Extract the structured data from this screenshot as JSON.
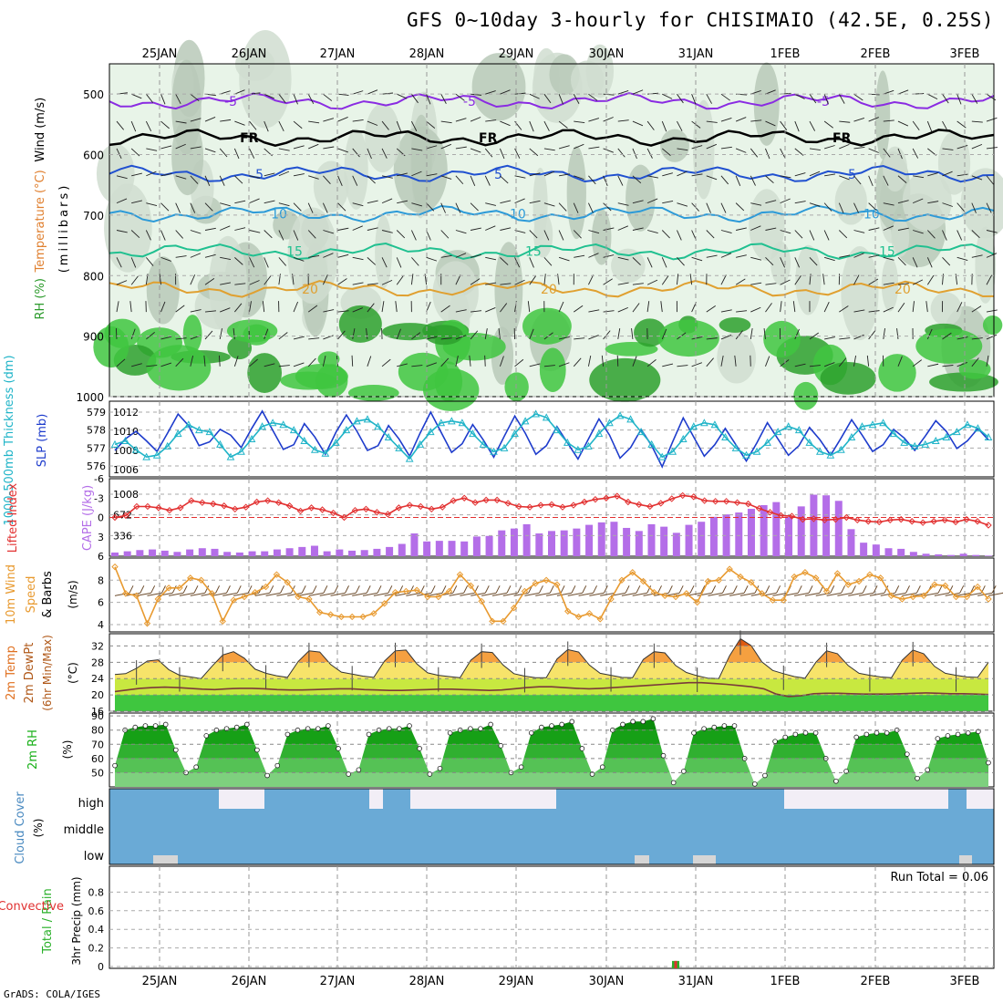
{
  "title": "GFS 0~10day 3-hourly for CHISIMAIO (42.5E, 0.25S)",
  "footer": "GrADS: COLA/IGES",
  "run_total_text": "Run Total = 0.06",
  "colors": {
    "rh_green": "#3fc63f",
    "cape": "#b46ee8",
    "lifted_index": "#e23030",
    "slp": "#1e3ccc",
    "thickness": "#20b4c8",
    "wind_speed": "#e89a30",
    "cloud": "#6aaad6",
    "rh2m": "#19b019",
    "temp_top": "#e05a10"
  },
  "chart_data": [
    {
      "type": "heatmap",
      "name": "vertical profile",
      "ylabel_segments": [
        {
          "text": "RH (%)",
          "color": "#2a9a2a"
        },
        {
          "text": "Temperature (°C)",
          "color": "#e08030"
        },
        {
          "text": "Wind (m/s)",
          "color": "#000000"
        }
      ],
      "ylabel2": "(millibars)",
      "x_top_labels": [
        "25JAN",
        "26JAN",
        "27JAN",
        "28JAN",
        "29JAN",
        "30JAN",
        "31JAN",
        "1FEB",
        "2FEB",
        "3FEB"
      ],
      "y_ticks": [
        500,
        600,
        700,
        800,
        900,
        1000
      ],
      "ylim": [
        1000,
        450
      ],
      "temperature_contours": [
        {
          "label": "-5",
          "pressure": 512,
          "color": "#8a2be2"
        },
        {
          "label": "FR",
          "pressure": 572,
          "color": "#000000"
        },
        {
          "label": "5",
          "pressure": 632,
          "color": "#2050d0"
        },
        {
          "label": "10",
          "pressure": 698,
          "color": "#2c9ad8"
        },
        {
          "label": "15",
          "pressure": 760,
          "color": "#20c090"
        },
        {
          "label": "20",
          "pressure": 822,
          "color": "#e0a030"
        }
      ]
    },
    {
      "type": "line",
      "name": "thickness and SLP",
      "ylabel_left": "1000-500mb Thickness (dm)",
      "ylabel_right": "SLP (mb)",
      "left_ticks": [
        576,
        577,
        578,
        579
      ],
      "right_ticks": [
        1006,
        1008,
        1010,
        1012
      ],
      "series": [
        {
          "name": "1000-500mb Thickness (dm)",
          "values": [
            577.2,
            577.4,
            576.9,
            576.5,
            576.6,
            577.1,
            577.8,
            578.3,
            578.0,
            577.9,
            577.2,
            576.5,
            576.8,
            577.5,
            578.2,
            578.4,
            578.3,
            578.0,
            577.4,
            576.9,
            576.7,
            577.3,
            578.0,
            578.5,
            578.6,
            578.2,
            577.6,
            577.0,
            576.4,
            577.2,
            577.9,
            578.4,
            578.5,
            578.4,
            577.8,
            577.2,
            576.8,
            577.0,
            577.8,
            578.5,
            578.9,
            578.7,
            578.0,
            577.3,
            576.9,
            577.1,
            577.8,
            578.4,
            578.8,
            578.6,
            577.9,
            577.2,
            576.5,
            576.8,
            577.5,
            578.2,
            578.4,
            578.3,
            577.6,
            577.0,
            576.6,
            576.8,
            577.3,
            577.9,
            578.2,
            578.0,
            577.3,
            576.8,
            576.6,
            576.9,
            577.6,
            578.2,
            578.3,
            578.4,
            577.8,
            577.3,
            577.1,
            577.2,
            577.4,
            577.6,
            577.9,
            578.3,
            578.1,
            577.6
          ]
        },
        {
          "name": "SLP (mb)",
          "values": [
            1008.0,
            1009.2,
            1010.0,
            1009.0,
            1007.9,
            1009.8,
            1011.8,
            1010.6,
            1008.5,
            1008.9,
            1010.2,
            1009.6,
            1008.3,
            1010.3,
            1012.1,
            1010.1,
            1008.1,
            1008.6,
            1010.8,
            1009.4,
            1007.6,
            1009.9,
            1011.7,
            1010.0,
            1008.0,
            1008.5,
            1010.6,
            1009.2,
            1007.4,
            1009.8,
            1012.0,
            1009.9,
            1007.8,
            1008.7,
            1010.7,
            1009.1,
            1007.3,
            1009.5,
            1011.6,
            1009.8,
            1007.6,
            1008.5,
            1010.5,
            1008.8,
            1007.1,
            1009.2,
            1011.3,
            1009.6,
            1007.2,
            1008.3,
            1010.2,
            1008.5,
            1006.3,
            1008.9,
            1011.4,
            1009.4,
            1007.4,
            1008.6,
            1010.3,
            1008.6,
            1006.9,
            1008.8,
            1010.9,
            1009.2,
            1007.5,
            1008.5,
            1010.4,
            1009.1,
            1007.5,
            1009.3,
            1011.2,
            1009.6,
            1007.9,
            1008.6,
            1010.2,
            1009.3,
            1008.0,
            1009.5,
            1011.1,
            1010.0,
            1008.2,
            1009.0,
            1010.3,
            1009.1
          ]
        }
      ]
    },
    {
      "type": "bar",
      "name": "CAPE and Lifted Index",
      "ylabel_left": "Lifted Index",
      "ylabel_right": "CAPE (J/kg)",
      "left_ticks": [
        "-6",
        "-3",
        "0",
        "3",
        "6"
      ],
      "right_ticks": [
        "336",
        "672",
        "1008"
      ],
      "series": [
        {
          "name": "CAPE (J/kg)",
          "values": [
            60,
            80,
            100,
            110,
            90,
            70,
            110,
            130,
            120,
            70,
            60,
            80,
            80,
            110,
            130,
            150,
            170,
            80,
            110,
            90,
            100,
            120,
            150,
            200,
            370,
            240,
            250,
            250,
            240,
            320,
            330,
            420,
            450,
            520,
            370,
            410,
            420,
            450,
            510,
            550,
            560,
            460,
            410,
            520,
            480,
            380,
            510,
            560,
            640,
            680,
            710,
            770,
            830,
            880,
            640,
            810,
            1000,
            990,
            900,
            440,
            220,
            190,
            130,
            120,
            70,
            40,
            30,
            20,
            40,
            20,
            10
          ]
        },
        {
          "name": "Lifted Index",
          "values": [
            0.0,
            -0.3,
            -1.7,
            -1.7,
            -1.5,
            -1.1,
            -1.5,
            -2.6,
            -2.3,
            -2.1,
            -1.8,
            -1.3,
            -1.6,
            -2.4,
            -2.6,
            -2.3,
            -1.8,
            -1.0,
            -1.5,
            -1.2,
            -0.7,
            0.0,
            -1.1,
            -1.3,
            -0.8,
            -0.5,
            -1.5,
            -1.9,
            -1.7,
            -1.3,
            -1.6,
            -2.6,
            -3.0,
            -2.3,
            -2.7,
            -2.7,
            -2.2,
            -1.7,
            -1.6,
            -1.9,
            -2.0,
            -1.6,
            -1.9,
            -2.4,
            -2.8,
            -3.0,
            -3.3,
            -2.4,
            -2.0,
            -1.7,
            -2.2,
            -2.9,
            -3.4,
            -3.2,
            -2.6,
            -2.5,
            -2.5,
            -2.3,
            -2.1,
            -1.4,
            -0.8,
            -0.3,
            -0.2,
            0.3,
            0.2,
            0.4,
            0.3,
            0.0,
            0.4,
            0.6,
            0.7,
            0.4,
            0.3,
            0.6,
            0.8,
            0.6,
            0.4,
            0.7,
            0.3,
            0.6,
            1.2
          ]
        }
      ]
    },
    {
      "type": "line",
      "name": "10m wind",
      "ylabel_segments": [
        {
          "text": "10m Wind",
          "color": "#e89a30"
        },
        {
          "text": "Speed",
          "color": "#e89a30"
        },
        {
          "text": "& Barbs",
          "color": "#000000"
        }
      ],
      "yunit": "(m/s)",
      "y_ticks": [
        "4",
        "6",
        "8"
      ],
      "series": [
        {
          "name": "Speed",
          "values": [
            9.2,
            6.8,
            6.6,
            4.1,
            6.3,
            7.3,
            7.3,
            8.2,
            8.0,
            6.8,
            4.3,
            6.2,
            6.5,
            6.9,
            7.4,
            8.5,
            7.8,
            6.5,
            6.3,
            5.1,
            4.9,
            4.7,
            4.7,
            4.7,
            5.0,
            5.9,
            6.9,
            7.0,
            7.1,
            6.5,
            6.5,
            7.0,
            8.5,
            7.5,
            6.1,
            4.3,
            4.3,
            5.5,
            7.0,
            7.7,
            8.0,
            7.6,
            5.2,
            4.7,
            5.0,
            4.5,
            6.3,
            8.0,
            8.7,
            7.9,
            6.9,
            6.6,
            6.5,
            6.8,
            6.0,
            7.9,
            8.0,
            9.0,
            8.3,
            7.8,
            6.8,
            6.2,
            6.2,
            8.3,
            8.7,
            8.2,
            7.0,
            8.6,
            7.6,
            7.9,
            8.5,
            8.2,
            6.6,
            6.3,
            6.5,
            6.6,
            7.6,
            7.5,
            6.5,
            6.5,
            7.4,
            6.3
          ]
        }
      ]
    },
    {
      "type": "area",
      "name": "2m temperature",
      "ylabel_segments": [
        {
          "text": "2m Temp",
          "color": "#e07020"
        },
        {
          "text": "2m DewPt",
          "color": "#b05818"
        },
        {
          "text": "(6hr Min/Max)",
          "color": "#b05818"
        }
      ],
      "yunit": "(°C)",
      "y_ticks": [
        "16",
        "20",
        "24",
        "28",
        "32"
      ],
      "series": [
        {
          "name": "2m Temp",
          "values": [
            25.0,
            25.2,
            26.5,
            28.3,
            28.6,
            26.2,
            24.8,
            24.4,
            24.0,
            27.0,
            29.8,
            30.6,
            29.0,
            26.3,
            25.3,
            24.7,
            24.3,
            28.2,
            30.8,
            30.5,
            27.5,
            25.6,
            25.1,
            24.6,
            24.3,
            28.3,
            30.8,
            31.0,
            27.6,
            25.4,
            24.8,
            24.5,
            24.2,
            28.5,
            30.6,
            30.4,
            27.3,
            25.2,
            24.6,
            24.2,
            24.2,
            28.8,
            31.1,
            30.5,
            27.3,
            25.3,
            24.8,
            24.3,
            24.2,
            28.7,
            30.6,
            30.3,
            27.2,
            25.5,
            24.7,
            24.1,
            24.0,
            29.6,
            33.8,
            32.1,
            28.1,
            26.0,
            25.2,
            24.5,
            24.1,
            28.0,
            30.8,
            30.1,
            27.2,
            25.3,
            24.8,
            24.4,
            24.2,
            28.5,
            31.0,
            30.1,
            27.0,
            25.3,
            24.8,
            24.4,
            24.3,
            28.0
          ]
        },
        {
          "name": "2m DewPt",
          "values": [
            20.8,
            21.2,
            21.6,
            21.8,
            21.9,
            21.8,
            21.6,
            21.4,
            21.3,
            21.5,
            21.6,
            21.6,
            21.5,
            21.3,
            21.2,
            21.2,
            21.3,
            21.4,
            21.5,
            21.5,
            21.3,
            21.2,
            21.1,
            21.1,
            21.2,
            21.3,
            21.4,
            21.4,
            21.3,
            21.2,
            21.1,
            21.2,
            21.5,
            21.8,
            22.0,
            22.0,
            21.8,
            21.6,
            21.5,
            21.6,
            21.8,
            22.0,
            22.2,
            22.4,
            22.6,
            22.8,
            23.0,
            23.0,
            22.8,
            22.6,
            22.3,
            22.0,
            21.5,
            20.2,
            19.6,
            19.8,
            20.3,
            20.4,
            20.4,
            20.3,
            20.2,
            20.2,
            20.2,
            20.3,
            20.4,
            20.5,
            20.4,
            20.3,
            20.3,
            20.2,
            20.1
          ]
        }
      ]
    },
    {
      "type": "area",
      "name": "2m RH",
      "ylabel": "2m RH",
      "yunit": "(%)",
      "y_ticks": [
        "50",
        "60",
        "70",
        "80",
        "90"
      ],
      "series": [
        {
          "name": "2m RH",
          "values": [
            55,
            80,
            82,
            83,
            83,
            84,
            66,
            50,
            54,
            76,
            80,
            81,
            82,
            84,
            66,
            48,
            55,
            77,
            80,
            81,
            81,
            83,
            67,
            49,
            52,
            77,
            80,
            81,
            81,
            83,
            67,
            49,
            53,
            78,
            80,
            81,
            81,
            84,
            69,
            50,
            54,
            78,
            82,
            83,
            84,
            86,
            67,
            49,
            54,
            80,
            84,
            86,
            86,
            88,
            62,
            43,
            51,
            78,
            81,
            82,
            83,
            83,
            60,
            42,
            48,
            72,
            75,
            77,
            78,
            78,
            60,
            44,
            51,
            75,
            77,
            78,
            78,
            80,
            63,
            46,
            52,
            74,
            76,
            77,
            78,
            79,
            57
          ]
        }
      ]
    },
    {
      "type": "area",
      "name": "Cloud Cover",
      "ylabel": "Cloud Cover",
      "yunit": "(%)",
      "categories": [
        "high",
        "middle",
        "low"
      ]
    },
    {
      "type": "bar",
      "name": "3hr Precip",
      "ylabel_segments": [
        {
          "text": "Total / Rain",
          "color": "#29b029"
        },
        {
          "text": "Convective",
          "color": "#e03030"
        }
      ],
      "ylabel2": "3hr Precip (mm)",
      "y_ticks": [
        "0",
        "0.2",
        "0.4",
        "0.6",
        "0.8"
      ],
      "ylim": [
        0,
        1
      ],
      "x_bottom_labels": [
        "25JAN",
        "26JAN",
        "27JAN",
        "28JAN",
        "29JAN",
        "30JAN",
        "31JAN",
        "1FEB",
        "2FEB",
        "3FEB"
      ],
      "series": [
        {
          "name": "Total / Rain",
          "values": [
            0,
            0,
            0,
            0,
            0,
            0,
            0,
            0,
            0,
            0,
            0,
            0,
            0,
            0,
            0,
            0,
            0,
            0,
            0,
            0,
            0,
            0,
            0,
            0,
            0,
            0,
            0,
            0,
            0,
            0,
            0,
            0,
            0,
            0,
            0,
            0,
            0,
            0,
            0,
            0,
            0,
            0,
            0,
            0,
            0,
            0,
            0,
            0,
            0,
            0,
            0,
            0,
            0.06,
            0,
            0,
            0,
            0,
            0,
            0,
            0,
            0,
            0,
            0,
            0,
            0,
            0,
            0,
            0,
            0,
            0,
            0,
            0,
            0,
            0,
            0,
            0,
            0,
            0,
            0,
            0,
            0,
            0
          ]
        },
        {
          "name": "Convective",
          "values": [
            0,
            0,
            0,
            0,
            0,
            0,
            0,
            0,
            0,
            0,
            0,
            0,
            0,
            0,
            0,
            0,
            0,
            0,
            0,
            0,
            0,
            0,
            0,
            0,
            0,
            0,
            0,
            0,
            0,
            0,
            0,
            0,
            0,
            0,
            0,
            0,
            0,
            0,
            0,
            0,
            0,
            0,
            0,
            0,
            0,
            0,
            0,
            0,
            0,
            0,
            0,
            0,
            0.06,
            0,
            0,
            0,
            0,
            0,
            0,
            0,
            0,
            0,
            0,
            0,
            0,
            0,
            0,
            0,
            0,
            0,
            0,
            0,
            0,
            0,
            0,
            0,
            0,
            0,
            0,
            0,
            0,
            0
          ]
        }
      ]
    }
  ]
}
